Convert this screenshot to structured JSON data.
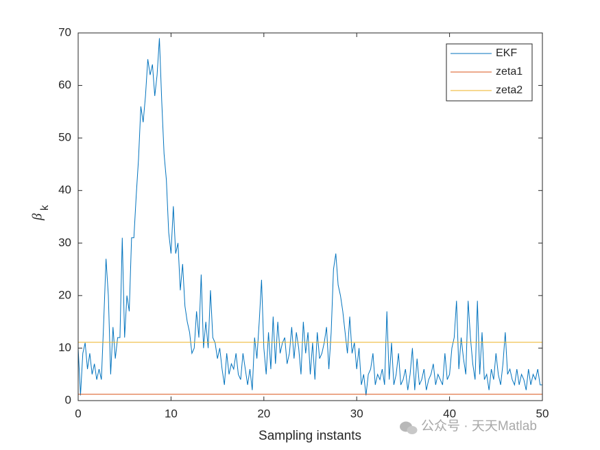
{
  "chart_data": {
    "type": "line",
    "xlabel": "Sampling instants",
    "ylabel": "β",
    "ylabel_subscript": "k",
    "xlim": [
      0,
      50
    ],
    "xticks": [
      0,
      10,
      20,
      30,
      40,
      50
    ],
    "ylim": [
      0,
      70
    ],
    "yticks": [
      0,
      10,
      20,
      30,
      40,
      50,
      60,
      70
    ],
    "legend": "top-right",
    "x": [
      0,
      0.25,
      0.5,
      0.75,
      1,
      1.25,
      1.5,
      1.75,
      2,
      2.25,
      2.5,
      2.75,
      3,
      3.25,
      3.5,
      3.75,
      4,
      4.25,
      4.5,
      4.75,
      5,
      5.25,
      5.5,
      5.75,
      6,
      6.25,
      6.5,
      6.75,
      7,
      7.25,
      7.5,
      7.75,
      8,
      8.25,
      8.5,
      8.75,
      9,
      9.25,
      9.5,
      9.75,
      10,
      10.25,
      10.5,
      10.75,
      11,
      11.25,
      11.5,
      11.75,
      12,
      12.25,
      12.5,
      12.75,
      13,
      13.25,
      13.5,
      13.75,
      14,
      14.25,
      14.5,
      14.75,
      15,
      15.25,
      15.5,
      15.75,
      16,
      16.25,
      16.5,
      16.75,
      17,
      17.25,
      17.5,
      17.75,
      18,
      18.25,
      18.5,
      18.75,
      19,
      19.25,
      19.5,
      19.75,
      20,
      20.25,
      20.5,
      20.75,
      21,
      21.25,
      21.5,
      21.75,
      22,
      22.25,
      22.5,
      22.75,
      23,
      23.25,
      23.5,
      23.75,
      24,
      24.25,
      24.5,
      24.75,
      25,
      25.25,
      25.5,
      25.75,
      26,
      26.25,
      26.5,
      26.75,
      27,
      27.25,
      27.5,
      27.75,
      28,
      28.25,
      28.5,
      28.75,
      29,
      29.25,
      29.5,
      29.75,
      30,
      30.25,
      30.5,
      30.75,
      31,
      31.25,
      31.5,
      31.75,
      32,
      32.25,
      32.5,
      32.75,
      33,
      33.25,
      33.5,
      33.75,
      34,
      34.25,
      34.5,
      34.75,
      35,
      35.25,
      35.5,
      35.75,
      36,
      36.25,
      36.5,
      36.75,
      37,
      37.25,
      37.5,
      37.75,
      38,
      38.25,
      38.5,
      38.75,
      39,
      39.25,
      39.5,
      39.75,
      40,
      40.25,
      40.5,
      40.75,
      41,
      41.25,
      41.5,
      41.75,
      42,
      42.25,
      42.5,
      42.75,
      43,
      43.25,
      43.5,
      43.75,
      44,
      44.25,
      44.5,
      44.75,
      45,
      45.25,
      45.5,
      45.75,
      46,
      46.25,
      46.5,
      46.75,
      47,
      47.25,
      47.5,
      47.75,
      48,
      48.25,
      48.5,
      48.75,
      49,
      49.25,
      49.5,
      49.75,
      50
    ],
    "series": [
      {
        "name": "EKF",
        "color": "#0072BD",
        "values": [
          10,
          1,
          9,
          11,
          6,
          9,
          5,
          7,
          4,
          6,
          4,
          15,
          27,
          20,
          5,
          14,
          8,
          12,
          12,
          31,
          12,
          20,
          17,
          31,
          31,
          39,
          46,
          56,
          53,
          58,
          65,
          62,
          64,
          58,
          62,
          69,
          57,
          47,
          42,
          32,
          28,
          37,
          28,
          30,
          21,
          26,
          18,
          15,
          13,
          9,
          10,
          17,
          12,
          24,
          10,
          15,
          10,
          21,
          12,
          11,
          8,
          10,
          6,
          3,
          9,
          5,
          7,
          6,
          9,
          5,
          4,
          9,
          6,
          3,
          6,
          2,
          12,
          8,
          15,
          23,
          10,
          5,
          13,
          6,
          16,
          7,
          15,
          9,
          11,
          12,
          7,
          9,
          14,
          8,
          13,
          10,
          5,
          15,
          9,
          13,
          5,
          11,
          4,
          13,
          8,
          9,
          11,
          14,
          6,
          13,
          25,
          28,
          22,
          20,
          17,
          13,
          9,
          16,
          9,
          11,
          6,
          10,
          3,
          5,
          1,
          5,
          6,
          9,
          3,
          5,
          4,
          6,
          3,
          17,
          4,
          11,
          3,
          5,
          9,
          3,
          4,
          6,
          2,
          5,
          10,
          2,
          8,
          3,
          4,
          6,
          2,
          4,
          5,
          7,
          3,
          5,
          4,
          3,
          9,
          4,
          5,
          10,
          12,
          19,
          6,
          12,
          8,
          5,
          19,
          12,
          7,
          4,
          19,
          5,
          13,
          4,
          5,
          2,
          6,
          4,
          9,
          5,
          3,
          7,
          13,
          5,
          6,
          4,
          3,
          6,
          3,
          5,
          4,
          2,
          6,
          3,
          5,
          4,
          6,
          3,
          3
        ]
      },
      {
        "name": "zeta1",
        "color": "#D95319",
        "value": 1.2
      },
      {
        "name": "zeta2",
        "color": "#EDB120",
        "value": 11.1
      }
    ],
    "watermark": "公众号 · 天天Matlab"
  }
}
